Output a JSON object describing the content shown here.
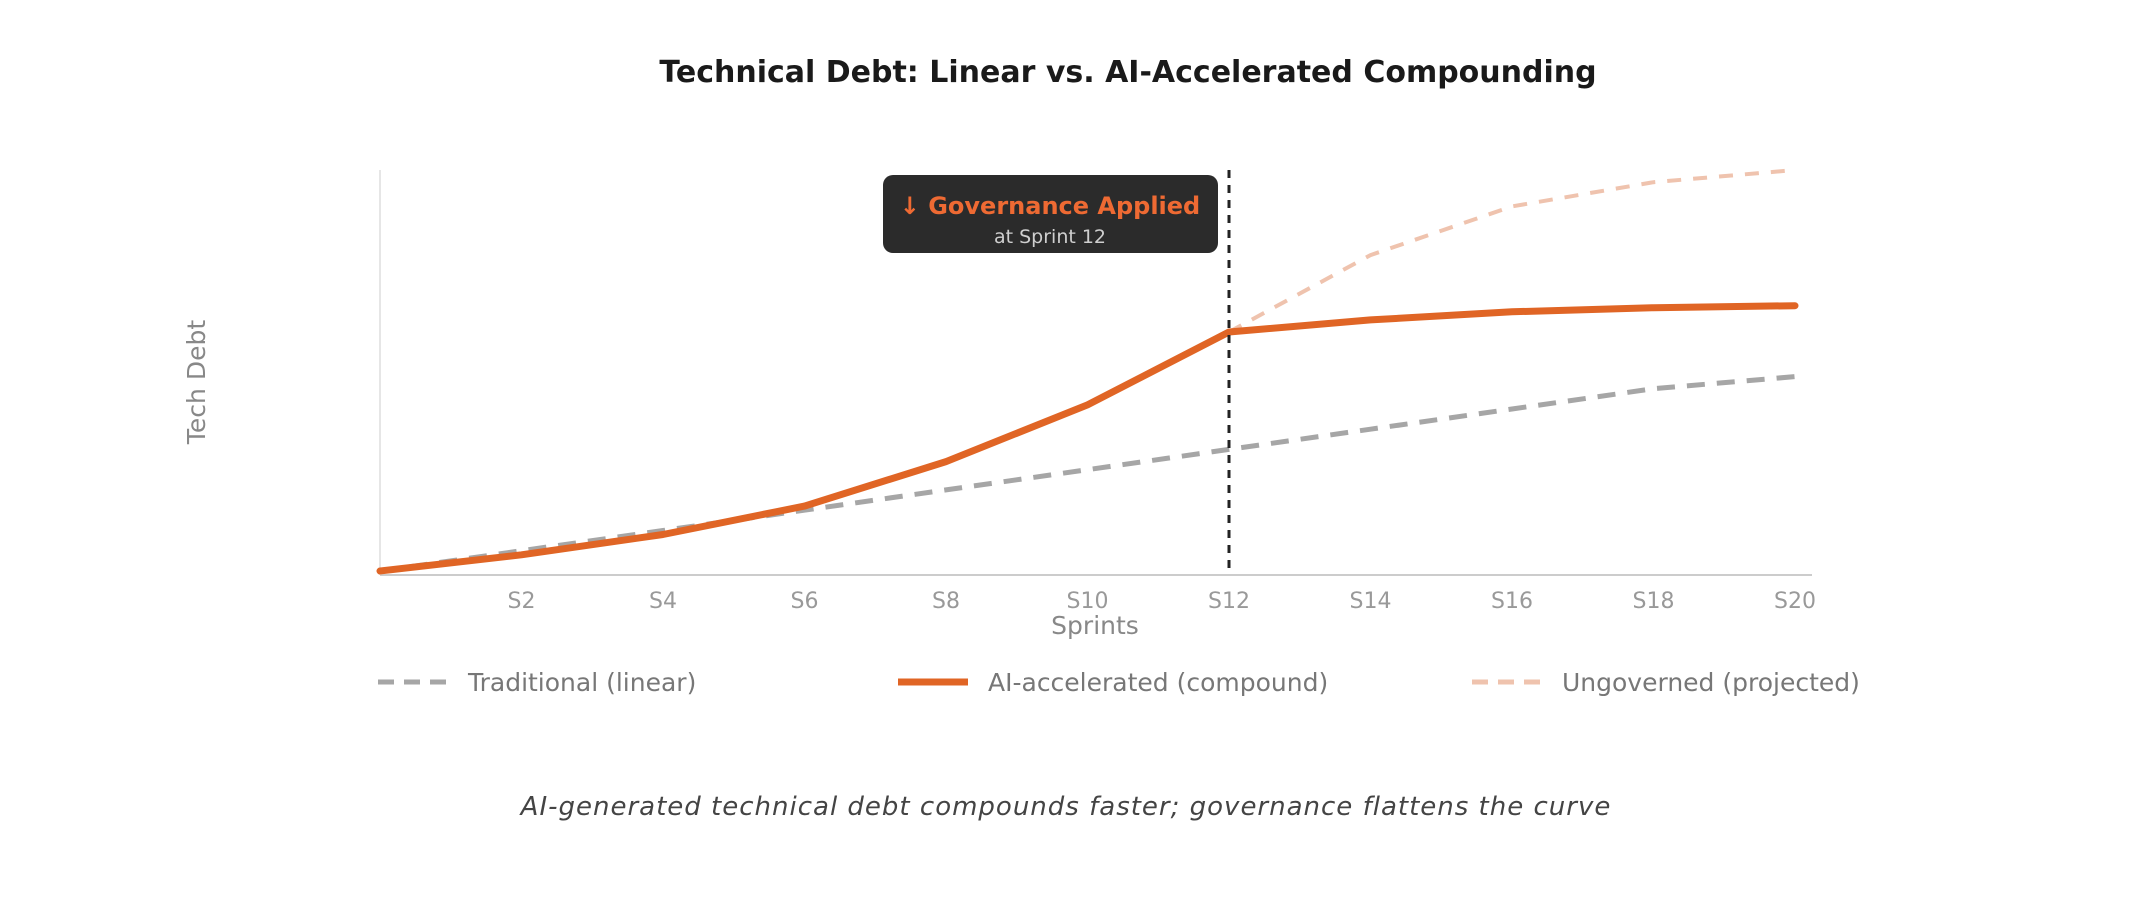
{
  "chart_data": {
    "type": "line",
    "title": "Technical Debt: Linear vs. AI-Accelerated Compounding",
    "xlabel": "Sprints",
    "ylabel": "Tech Debt",
    "x": [
      0,
      2,
      4,
      6,
      8,
      10,
      12,
      14,
      16,
      18,
      20
    ],
    "tick_labels": [
      "S2",
      "S4",
      "S6",
      "S8",
      "S10",
      "S12",
      "S14",
      "S16",
      "S18",
      "S20"
    ],
    "xlim": [
      0,
      20
    ],
    "ylim": [
      0,
      100
    ],
    "grid": false,
    "legend_position": "bottom",
    "series": [
      {
        "name": "Traditional (linear)",
        "style": "dashed",
        "color": "#a6a6a6",
        "x": [
          0,
          2,
          4,
          6,
          8,
          10,
          12,
          14,
          16,
          18,
          20
        ],
        "values": [
          1,
          6,
          11,
          16,
          21,
          26,
          31,
          36,
          41,
          46,
          49
        ]
      },
      {
        "name": "AI-accelerated (compound)",
        "style": "solid",
        "color": "#e06525",
        "x": [
          0,
          2,
          4,
          6,
          8,
          10,
          12,
          14,
          16,
          18,
          20
        ],
        "values": [
          1,
          5,
          10,
          17,
          28,
          42,
          60,
          63,
          65,
          66,
          66.5
        ]
      },
      {
        "name": "Ungoverned (projected)",
        "style": "dashed",
        "color": "#efc3ae",
        "x": [
          12,
          14,
          16,
          18,
          20
        ],
        "values": [
          60,
          79,
          91,
          97,
          100
        ]
      }
    ],
    "annotation": {
      "title": "↓ Governance Applied",
      "subtitle": "at Sprint 12",
      "x": 12
    }
  },
  "caption": "AI-generated technical debt compounds faster; governance flattens the curve"
}
